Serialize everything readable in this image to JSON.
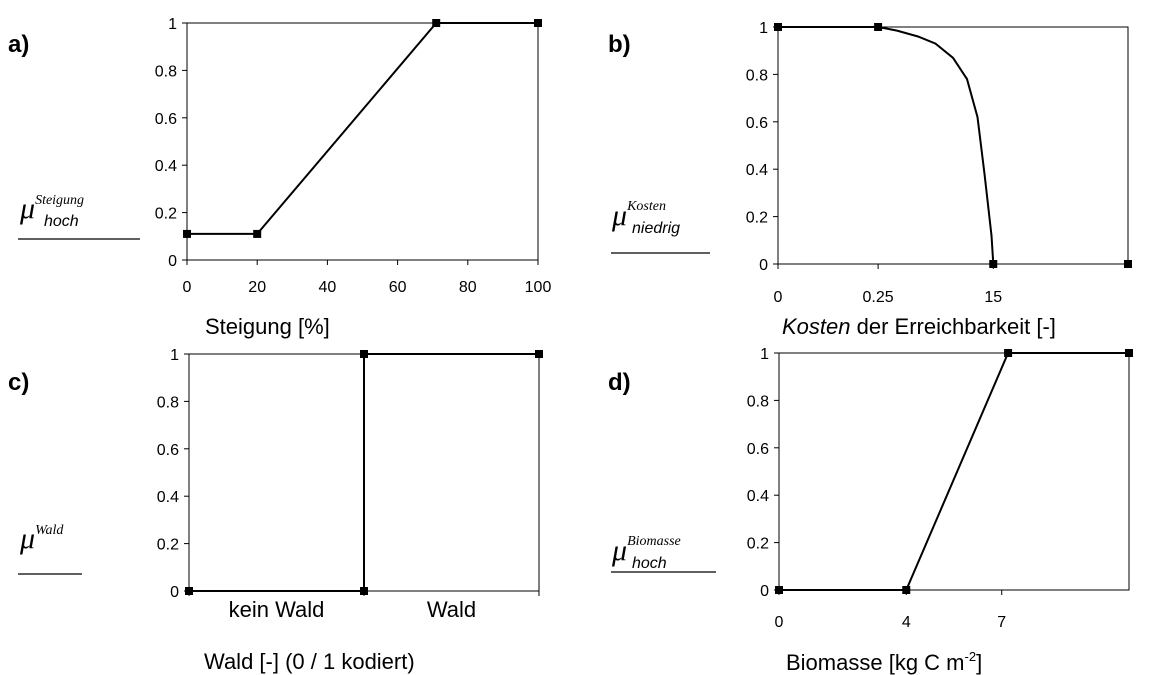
{
  "panels": [
    {
      "id": "a",
      "letter": "a)",
      "y_symbol": "μ",
      "y_superscript": "Steigung",
      "y_subscript": "hoch",
      "x_label": "Steigung [%]",
      "x_ticks": [
        "0",
        "20",
        "40",
        "60",
        "80",
        "100"
      ],
      "y_ticks": [
        "0",
        "0.2",
        "0.4",
        "0.6",
        "0.8",
        "1"
      ]
    },
    {
      "id": "b",
      "letter": "b)",
      "y_symbol": "μ",
      "y_superscript": "Kosten",
      "y_subscript": "niedrig",
      "x_label_italic": "Kosten",
      "x_label_rest": " der Erreichbarkeit [-]",
      "x_ticks": [
        "0",
        "0.25",
        "15"
      ],
      "y_ticks": [
        "0",
        "0.2",
        "0.4",
        "0.6",
        "0.8",
        "1"
      ]
    },
    {
      "id": "c",
      "letter": "c)",
      "y_symbol": "μ",
      "y_superscript": "Wald",
      "y_subscript": "",
      "x_label": "Wald [-] (0 / 1 kodiert)",
      "x_categories": [
        "kein Wald",
        "Wald"
      ],
      "y_ticks": [
        "0",
        "0.2",
        "0.4",
        "0.6",
        "0.8",
        "1"
      ]
    },
    {
      "id": "d",
      "letter": "d)",
      "y_symbol": "μ",
      "y_superscript": "Biomasse",
      "y_subscript": "hoch",
      "x_label_main": "Biomasse [kg C m",
      "x_label_sup": "-2",
      "x_label_end": "]",
      "x_ticks": [
        "0",
        "4",
        "7"
      ],
      "y_ticks": [
        "0",
        "0.2",
        "0.4",
        "0.6",
        "0.8",
        "1"
      ]
    }
  ],
  "chart_data": [
    {
      "type": "line",
      "panel": "a",
      "xlabel": "Steigung [%]",
      "ylabel": "μ Steigung hoch",
      "xlim": [
        0,
        100
      ],
      "ylim": [
        0,
        1
      ],
      "x": [
        0,
        20,
        71,
        100
      ],
      "y": [
        0.11,
        0.11,
        1.0,
        1.0
      ]
    },
    {
      "type": "line",
      "panel": "b",
      "xlabel": "Kosten der Erreichbarkeit [-]",
      "ylabel": "μ Kosten niedrig",
      "x_scale": "nonlinear",
      "x_tick_labels": [
        "0",
        "0.25",
        "15"
      ],
      "ylim": [
        0,
        1
      ],
      "curve_points_axis_fraction": [
        [
          0,
          1.0
        ],
        [
          0.286,
          1.0
        ],
        [
          0.34,
          0.985
        ],
        [
          0.4,
          0.96
        ],
        [
          0.45,
          0.93
        ],
        [
          0.5,
          0.87
        ],
        [
          0.54,
          0.78
        ],
        [
          0.57,
          0.62
        ],
        [
          0.59,
          0.38
        ],
        [
          0.61,
          0.12
        ],
        [
          0.615,
          0
        ]
      ],
      "markers_x_fraction": [
        0,
        0.286,
        0.615,
        1.0
      ],
      "markers_y": [
        1.0,
        1.0,
        0.0,
        0.0
      ]
    },
    {
      "type": "line",
      "panel": "c",
      "xlabel": "Wald [-] (0 / 1 kodiert)",
      "ylabel": "μ Wald",
      "categories": [
        "kein Wald",
        "Wald"
      ],
      "ylim": [
        0,
        1
      ],
      "x_axis_fraction": [
        0,
        0.5,
        0.5,
        1.0
      ],
      "y": [
        0,
        0,
        1.0,
        1.0
      ]
    },
    {
      "type": "line",
      "panel": "d",
      "xlabel": "Biomasse [kg C m-2]",
      "ylabel": "μ Biomasse hoch",
      "x_tick_labels": [
        "0",
        "4",
        "7"
      ],
      "ylim": [
        0,
        1
      ],
      "x": [
        0,
        4,
        7.2,
        11
      ],
      "y": [
        0,
        0,
        1.0,
        1.0
      ]
    }
  ]
}
